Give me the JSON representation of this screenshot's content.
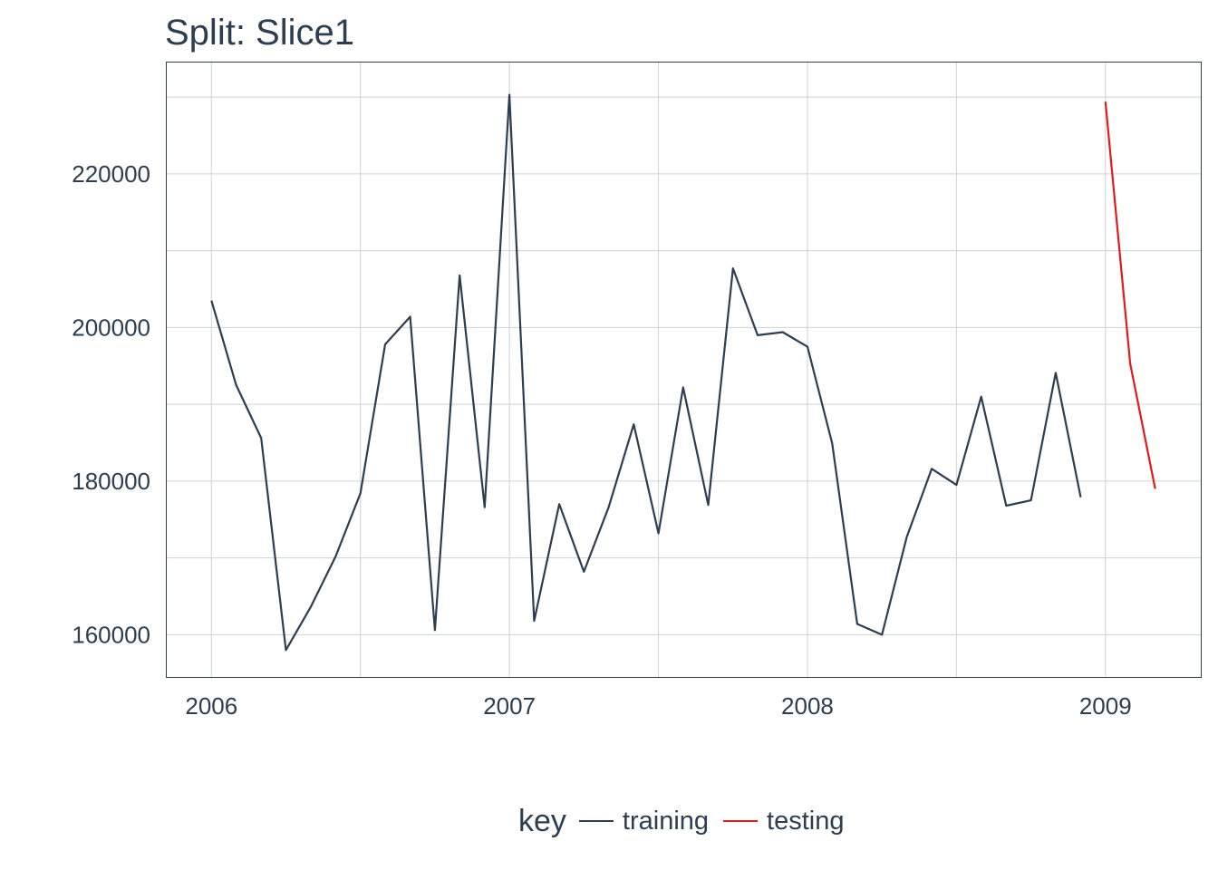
{
  "chart_data": {
    "type": "line",
    "title": "Split: Slice1",
    "xlabel": "",
    "ylabel": "",
    "xlim": [
      2005.85,
      2009.32
    ],
    "ylim": [
      154500,
      234500
    ],
    "x_ticks": [
      2006,
      2007,
      2008,
      2009
    ],
    "x_tick_labels": [
      "2006",
      "2007",
      "2008",
      "2009"
    ],
    "y_ticks": [
      160000,
      180000,
      200000,
      220000
    ],
    "y_tick_labels": [
      "160000",
      "180000",
      "200000",
      "220000"
    ],
    "y_minor_ticks": [
      170000,
      190000,
      210000,
      230000
    ],
    "x_minor_ticks": [
      2006.5,
      2007.5,
      2008.5
    ],
    "grid": true,
    "legend": {
      "title": "key",
      "position": "bottom"
    },
    "series": [
      {
        "name": "training",
        "color": "#2c3e50",
        "x": [
          2006.0,
          2006.083,
          2006.167,
          2006.25,
          2006.333,
          2006.417,
          2006.5,
          2006.583,
          2006.667,
          2006.75,
          2006.833,
          2006.917,
          2007.0,
          2007.083,
          2007.167,
          2007.25,
          2007.333,
          2007.417,
          2007.5,
          2007.583,
          2007.667,
          2007.75,
          2007.833,
          2007.917,
          2008.0,
          2008.083,
          2008.167,
          2008.25,
          2008.333,
          2008.417,
          2008.5,
          2008.583,
          2008.667,
          2008.75,
          2008.833,
          2008.917
        ],
        "values": [
          203500,
          192500,
          185600,
          158000,
          163600,
          170200,
          178400,
          197800,
          201400,
          160600,
          206800,
          176600,
          230300,
          161800,
          177000,
          168200,
          176600,
          187400,
          173200,
          192200,
          176900,
          207700,
          199000,
          199400,
          197500,
          184900,
          161400,
          160000,
          172700,
          181600,
          179500,
          191000,
          176800,
          177500,
          194100,
          177900
        ]
      },
      {
        "name": "testing",
        "color": "#e31a1c",
        "x": [
          2009.0,
          2009.083,
          2009.167
        ],
        "values": [
          229400,
          195300,
          179000
        ]
      }
    ]
  }
}
